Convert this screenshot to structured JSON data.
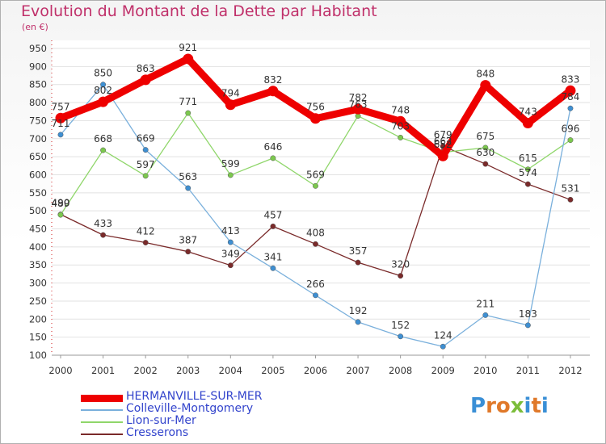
{
  "header": {
    "title": "Evolution du Montant de la Dette par Habitant",
    "unit": "(en €)"
  },
  "logo": {
    "text": "Proxiti",
    "letter_colors": [
      "#3a8fd6",
      "#e0792a",
      "#e0792a",
      "#7bbd3a",
      "#3a8fd6",
      "#e0792a",
      "#3a8fd6"
    ]
  },
  "chart_data": {
    "type": "line",
    "title": "Evolution du Montant de la Dette par Habitant",
    "ylabel": "(en €)",
    "xlabel": "",
    "ylim": [
      100,
      950
    ],
    "yticks": [
      100,
      150,
      200,
      250,
      300,
      350,
      400,
      450,
      500,
      550,
      600,
      650,
      700,
      750,
      800,
      850,
      900,
      950
    ],
    "x": [
      "2000",
      "2001",
      "2002",
      "2003",
      "2004",
      "2005",
      "2006",
      "2007",
      "2008",
      "2009",
      "2010",
      "2011",
      "2012"
    ],
    "grid": "horizontal",
    "legend_position": "bottom-left",
    "series": [
      {
        "name": "Cresserons",
        "color": "#7a2a2a",
        "marker": "#7a2a2a",
        "width": 1.3,
        "values": [
          490,
          433,
          412,
          387,
          349,
          457,
          408,
          357,
          320,
          679,
          630,
          574,
          531
        ],
        "labels": [
          "490",
          "433",
          "412",
          "387",
          "349",
          "457",
          "408",
          "357",
          "320",
          "679",
          "630",
          "574",
          "531"
        ]
      },
      {
        "name": "Lion-sur-Mer",
        "color": "#8fd66a",
        "marker": "#7cc84e",
        "width": 1.3,
        "values": [
          489,
          668,
          597,
          771,
          599,
          646,
          569,
          763,
          703,
          662,
          675,
          615,
          696
        ],
        "labels": [
          "489",
          "668",
          "597",
          "771",
          "599",
          "646",
          "569",
          "763",
          "703",
          "662",
          "675",
          "615",
          "696"
        ]
      },
      {
        "name": "Colleville-Montgomery",
        "color": "#7ab0dc",
        "marker": "#3e8fd2",
        "width": 1.3,
        "values": [
          711,
          850,
          669,
          563,
          413,
          341,
          266,
          192,
          152,
          124,
          211,
          183,
          784
        ],
        "labels": [
          "711",
          "850",
          "669",
          "563",
          "413",
          "341",
          "266",
          "192",
          "152",
          "124",
          "211",
          "183",
          "784"
        ]
      },
      {
        "name": "HERMANVILLE-SUR-MER",
        "color": "#ee0000",
        "marker": "#ee0000",
        "width": 9,
        "values": [
          757,
          802,
          863,
          921,
          794,
          832,
          756,
          782,
          748,
          652,
          848,
          743,
          833
        ],
        "labels": [
          "757",
          "802",
          "863",
          "921",
          "794",
          "832",
          "756",
          "782",
          "748",
          "652",
          "848",
          "743",
          "833"
        ]
      }
    ],
    "legend": [
      "HERMANVILLE-SUR-MER",
      "Colleville-Montgomery",
      "Lion-sur-Mer",
      "Cresserons"
    ]
  }
}
